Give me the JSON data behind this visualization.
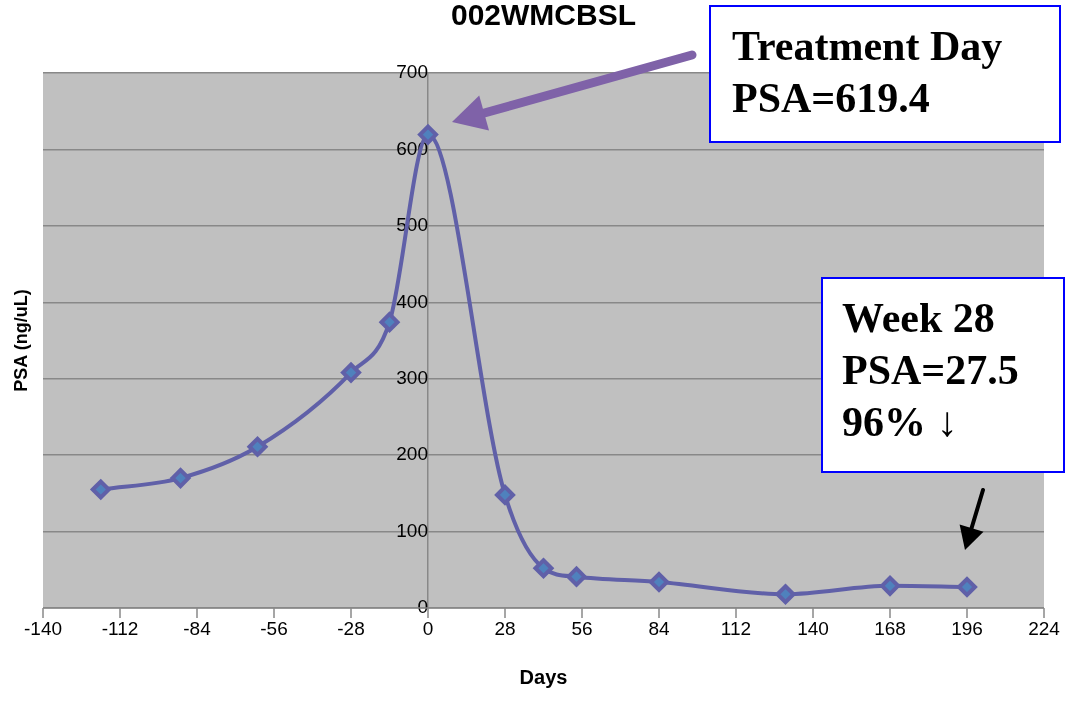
{
  "chart_data": {
    "type": "line",
    "title": "002WMCBSL",
    "xlabel": "Days",
    "ylabel": "PSA (ng/uL)",
    "x": [
      -119,
      -90,
      -62,
      -28,
      -14,
      0,
      28,
      42,
      54,
      84,
      130,
      168,
      196
    ],
    "series": [
      {
        "color": "#6060a8",
        "values": [
          155,
          170,
          211,
          308,
          374,
          619.4,
          148,
          52,
          41,
          34,
          18,
          29,
          27.5
        ]
      }
    ],
    "xlim": [
      -140,
      224
    ],
    "xticks": [
      -140,
      -112,
      -84,
      -56,
      -28,
      0,
      28,
      56,
      84,
      112,
      140,
      168,
      196,
      224
    ],
    "ylim": [
      0,
      700
    ],
    "yticks": [
      0,
      100,
      200,
      300,
      400,
      500,
      600,
      700
    ],
    "grid": "y",
    "legend": false,
    "marker": "diamond",
    "line_style": "solid",
    "annotations": [
      "Treatment Day\nPSA=619.4",
      "Week 28\nPSA=27.5\n96% ↓"
    ]
  }
}
